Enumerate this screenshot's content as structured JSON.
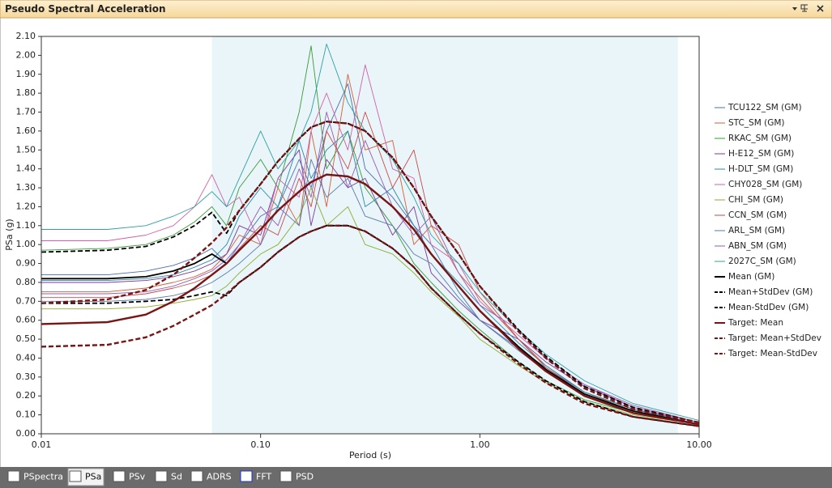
{
  "window": {
    "title": "Pseudo Spectral Acceleration"
  },
  "tabs": [
    "PSpectra",
    "PSa",
    "PSv",
    "Sd",
    "ADRS",
    "FFT",
    "PSD"
  ],
  "active_tab": 1,
  "chart_data": {
    "type": "line",
    "xlabel": "Period (s)",
    "ylabel": "PSa (g)",
    "xscale": "log",
    "xlim": [
      0.01,
      10
    ],
    "ylim": [
      0,
      2.1
    ],
    "xticks": [
      0.01,
      {
        "value": 0.1,
        "label": "0.10"
      },
      {
        "value": 1,
        "label": "1.00"
      },
      {
        "value": 10,
        "label": "10.00"
      }
    ],
    "yticks": [
      {
        "value": 0,
        "label": "0.00"
      },
      {
        "value": 0.1,
        "label": "0.10"
      },
      {
        "value": 0.2,
        "label": "0.20"
      },
      {
        "value": 0.3,
        "label": "0.30"
      },
      {
        "value": 0.4,
        "label": "0.40"
      },
      {
        "value": 0.5,
        "label": "0.50"
      },
      {
        "value": 0.6,
        "label": "0.60"
      },
      {
        "value": 0.7,
        "label": "0.70"
      },
      {
        "value": 0.8,
        "label": "0.80"
      },
      {
        "value": 0.9,
        "label": "0.90"
      },
      {
        "value": 1.0,
        "label": "1.00"
      },
      {
        "value": 1.1,
        "label": "1.10"
      },
      {
        "value": 1.2,
        "label": "1.20"
      },
      {
        "value": 1.3,
        "label": "1.30"
      },
      {
        "value": 1.4,
        "label": "1.40"
      },
      {
        "value": 1.5,
        "label": "1.50"
      },
      {
        "value": 1.6,
        "label": "1.60"
      },
      {
        "value": 1.7,
        "label": "1.70"
      },
      {
        "value": 1.8,
        "label": "1.80"
      },
      {
        "value": 1.9,
        "label": "1.90"
      },
      {
        "value": 2.0,
        "label": "2.00"
      },
      {
        "value": 2.1,
        "label": "2.10"
      }
    ],
    "shaded_range": [
      0.06,
      8
    ],
    "shaded_color": "#e9f5f8",
    "legend": "right",
    "x": [
      0.01,
      0.02,
      0.03,
      0.04,
      0.05,
      0.06,
      0.07,
      0.08,
      0.1,
      0.12,
      0.15,
      0.17,
      0.2,
      0.25,
      0.3,
      0.4,
      0.5,
      0.6,
      0.8,
      1.0,
      1.5,
      2,
      3,
      5,
      10
    ],
    "series": [
      {
        "name": "TCU122_SM (GM)",
        "color": "#4a6fb0",
        "values": [
          0.84,
          0.84,
          0.86,
          0.89,
          0.93,
          0.98,
          0.9,
          1.0,
          1.15,
          1.2,
          1.45,
          1.3,
          1.6,
          1.85,
          1.4,
          1.25,
          1.1,
          1.0,
          0.75,
          0.6,
          0.45,
          0.35,
          0.22,
          0.13,
          0.05
        ]
      },
      {
        "name": "STC_SM (GM)",
        "color": "#d0603a",
        "values": [
          0.75,
          0.75,
          0.77,
          0.8,
          0.83,
          0.87,
          0.95,
          1.05,
          1.0,
          1.3,
          1.1,
          1.6,
          1.2,
          1.9,
          1.5,
          1.55,
          1.0,
          1.1,
          0.85,
          0.72,
          0.5,
          0.36,
          0.22,
          0.12,
          0.05
        ]
      },
      {
        "name": "RKAC_SM (GM)",
        "color": "#3a9a3a",
        "values": [
          0.97,
          0.98,
          1.0,
          1.05,
          1.12,
          1.2,
          1.1,
          1.3,
          1.45,
          1.3,
          1.7,
          2.05,
          1.4,
          1.6,
          1.3,
          1.1,
          0.9,
          0.8,
          0.65,
          0.55,
          0.38,
          0.28,
          0.18,
          0.11,
          0.05
        ]
      },
      {
        "name": "H-E12_SM (GM)",
        "color": "#7a3aa0",
        "values": [
          0.8,
          0.8,
          0.81,
          0.83,
          0.86,
          0.9,
          0.95,
          1.1,
          1.05,
          1.35,
          1.5,
          1.1,
          1.45,
          1.3,
          1.35,
          1.05,
          1.2,
          0.85,
          0.7,
          0.6,
          0.5,
          0.38,
          0.25,
          0.14,
          0.06
        ]
      },
      {
        "name": "H-DLT_SM (GM)",
        "color": "#2a8aa8",
        "values": [
          0.81,
          0.81,
          0.82,
          0.84,
          0.88,
          0.92,
          1.0,
          1.15,
          1.3,
          1.2,
          1.55,
          1.35,
          1.5,
          1.6,
          1.2,
          1.3,
          1.1,
          0.95,
          0.8,
          0.68,
          0.48,
          0.36,
          0.22,
          0.13,
          0.06
        ]
      },
      {
        "name": "CHY028_SM (GM)",
        "color": "#d060a8",
        "values": [
          1.02,
          1.02,
          1.05,
          1.1,
          1.2,
          1.37,
          1.2,
          1.25,
          1.0,
          1.35,
          1.25,
          1.6,
          1.8,
          1.5,
          1.95,
          1.4,
          1.35,
          1.0,
          0.9,
          0.7,
          0.52,
          0.4,
          0.26,
          0.14,
          0.06
        ]
      },
      {
        "name": "CHI_SM (GM)",
        "color": "#8aae30",
        "values": [
          0.66,
          0.66,
          0.67,
          0.69,
          0.71,
          0.73,
          0.78,
          0.85,
          0.95,
          1.0,
          1.15,
          1.3,
          1.1,
          1.2,
          1.0,
          0.95,
          0.85,
          0.75,
          0.62,
          0.5,
          0.36,
          0.27,
          0.17,
          0.1,
          0.05
        ]
      },
      {
        "name": "CCN_SM (GM)",
        "color": "#c84848",
        "values": [
          0.72,
          0.72,
          0.74,
          0.77,
          0.8,
          0.84,
          0.9,
          0.98,
          1.1,
          1.05,
          1.35,
          1.2,
          1.6,
          1.4,
          1.7,
          1.3,
          1.5,
          1.1,
          1.0,
          0.75,
          0.5,
          0.35,
          0.21,
          0.12,
          0.05
        ]
      },
      {
        "name": "ARL_SM (GM)",
        "color": "#5a7aa8",
        "values": [
          0.7,
          0.7,
          0.71,
          0.73,
          0.76,
          0.8,
          0.85,
          0.9,
          1.0,
          1.2,
          1.1,
          1.45,
          1.25,
          1.35,
          1.15,
          1.1,
          0.95,
          0.9,
          0.72,
          0.6,
          0.44,
          0.33,
          0.2,
          0.12,
          0.05
        ]
      },
      {
        "name": "ABN_SM (GM)",
        "color": "#9a5ab8",
        "values": [
          0.74,
          0.74,
          0.75,
          0.78,
          0.82,
          0.86,
          0.92,
          1.0,
          1.2,
          1.1,
          1.4,
          1.25,
          1.7,
          1.3,
          1.55,
          1.2,
          1.05,
          1.15,
          0.85,
          0.68,
          0.55,
          0.4,
          0.26,
          0.15,
          0.06
        ]
      },
      {
        "name": "2027C_SM (GM)",
        "color": "#30a0a0",
        "values": [
          1.08,
          1.08,
          1.1,
          1.15,
          1.2,
          1.28,
          1.2,
          1.35,
          1.6,
          1.4,
          1.55,
          1.7,
          2.06,
          1.75,
          1.6,
          1.45,
          1.25,
          1.05,
          0.9,
          0.75,
          0.55,
          0.42,
          0.28,
          0.16,
          0.07
        ]
      },
      {
        "name": "Mean (GM)",
        "color": "#000000",
        "values": [
          0.82,
          0.82,
          0.83,
          0.86,
          0.9,
          0.95,
          0.9,
          0.97,
          1.08,
          1.18,
          1.28,
          1.33,
          1.37,
          1.36,
          1.32,
          1.2,
          1.08,
          0.95,
          0.78,
          0.65,
          0.46,
          0.34,
          0.21,
          0.12,
          0.05
        ]
      },
      {
        "name": "Mean+StdDev (GM)",
        "color": "#000000",
        "dashed": true,
        "values": [
          0.96,
          0.97,
          0.99,
          1.04,
          1.1,
          1.17,
          1.06,
          1.18,
          1.32,
          1.44,
          1.56,
          1.62,
          1.65,
          1.64,
          1.6,
          1.46,
          1.3,
          1.15,
          0.95,
          0.78,
          0.55,
          0.41,
          0.25,
          0.14,
          0.06
        ]
      },
      {
        "name": "Mean-StdDev (GM)",
        "color": "#000000",
        "dashed": true,
        "values": [
          0.69,
          0.69,
          0.7,
          0.71,
          0.73,
          0.75,
          0.73,
          0.8,
          0.88,
          0.96,
          1.04,
          1.07,
          1.1,
          1.1,
          1.07,
          0.98,
          0.88,
          0.77,
          0.63,
          0.53,
          0.38,
          0.28,
          0.17,
          0.09,
          0.04
        ]
      },
      {
        "name": "Target: Mean",
        "color": "#7a1414",
        "values": [
          0.58,
          0.59,
          0.63,
          0.7,
          0.77,
          0.84,
          0.9,
          0.97,
          1.08,
          1.18,
          1.28,
          1.33,
          1.37,
          1.36,
          1.32,
          1.2,
          1.08,
          0.95,
          0.78,
          0.65,
          0.45,
          0.33,
          0.2,
          0.11,
          0.05
        ]
      },
      {
        "name": "Target: Mean+StdDev",
        "color": "#7a1414",
        "dashed": true,
        "values": [
          0.69,
          0.71,
          0.76,
          0.84,
          0.93,
          1.01,
          1.09,
          1.18,
          1.32,
          1.44,
          1.56,
          1.62,
          1.65,
          1.64,
          1.6,
          1.46,
          1.3,
          1.15,
          0.95,
          0.78,
          0.54,
          0.4,
          0.24,
          0.13,
          0.06
        ]
      },
      {
        "name": "Target: Mean-StdDev",
        "color": "#7a1414",
        "dashed": true,
        "values": [
          0.46,
          0.47,
          0.51,
          0.57,
          0.63,
          0.68,
          0.74,
          0.8,
          0.88,
          0.96,
          1.04,
          1.07,
          1.1,
          1.1,
          1.07,
          0.98,
          0.88,
          0.77,
          0.63,
          0.53,
          0.37,
          0.27,
          0.16,
          0.09,
          0.04
        ]
      }
    ]
  }
}
